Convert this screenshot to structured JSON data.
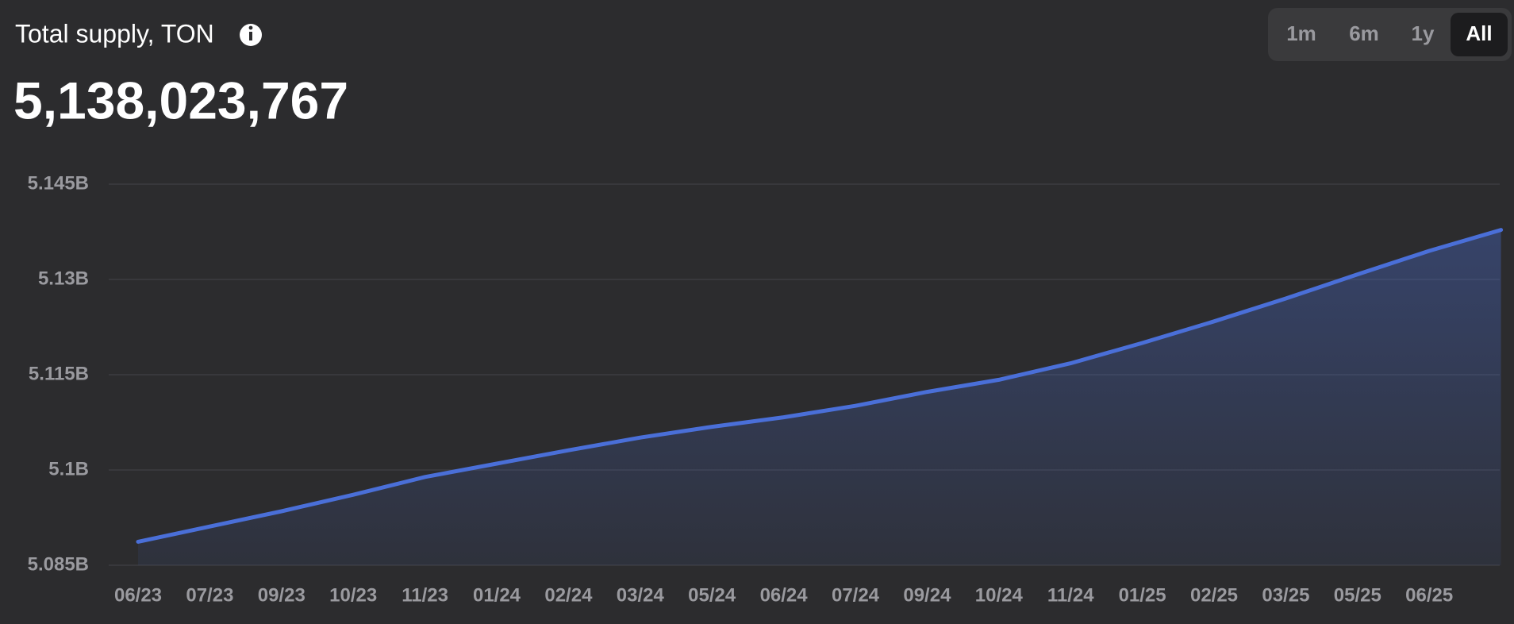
{
  "chart_data": {
    "type": "area",
    "title": "Total supply, TON",
    "subtitle": "5,138,023,767",
    "categories": [
      "06/23",
      "07/23",
      "09/23",
      "10/23",
      "11/23",
      "01/24",
      "02/24",
      "03/24",
      "05/24",
      "06/24",
      "07/24",
      "09/24",
      "10/24",
      "11/24",
      "01/25",
      "02/25",
      "03/25",
      "05/25",
      "06/25",
      null
    ],
    "values": [
      5088700000,
      5091100000,
      5093500000,
      5096100000,
      5098900000,
      5101000000,
      5103100000,
      5105100000,
      5106800000,
      5108300000,
      5110100000,
      5112300000,
      5114200000,
      5116800000,
      5120000000,
      5123400000,
      5127000000,
      5130800000,
      5134500000,
      5137800000
    ],
    "color": "#4a6fd8",
    "ylim": [
      5085000000,
      5145000000
    ],
    "yticks": [
      {
        "value": 5085000000,
        "label": "5.085B"
      },
      {
        "value": 5100000000,
        "label": "5.1B"
      },
      {
        "value": 5115000000,
        "label": "5.115B"
      },
      {
        "value": 5130000000,
        "label": "5.13B"
      },
      {
        "value": 5145000000,
        "label": "5.145B"
      }
    ],
    "grid": true
  },
  "controls": {
    "ranges": [
      "1m",
      "6m",
      "1y",
      "All"
    ],
    "active": "All"
  }
}
